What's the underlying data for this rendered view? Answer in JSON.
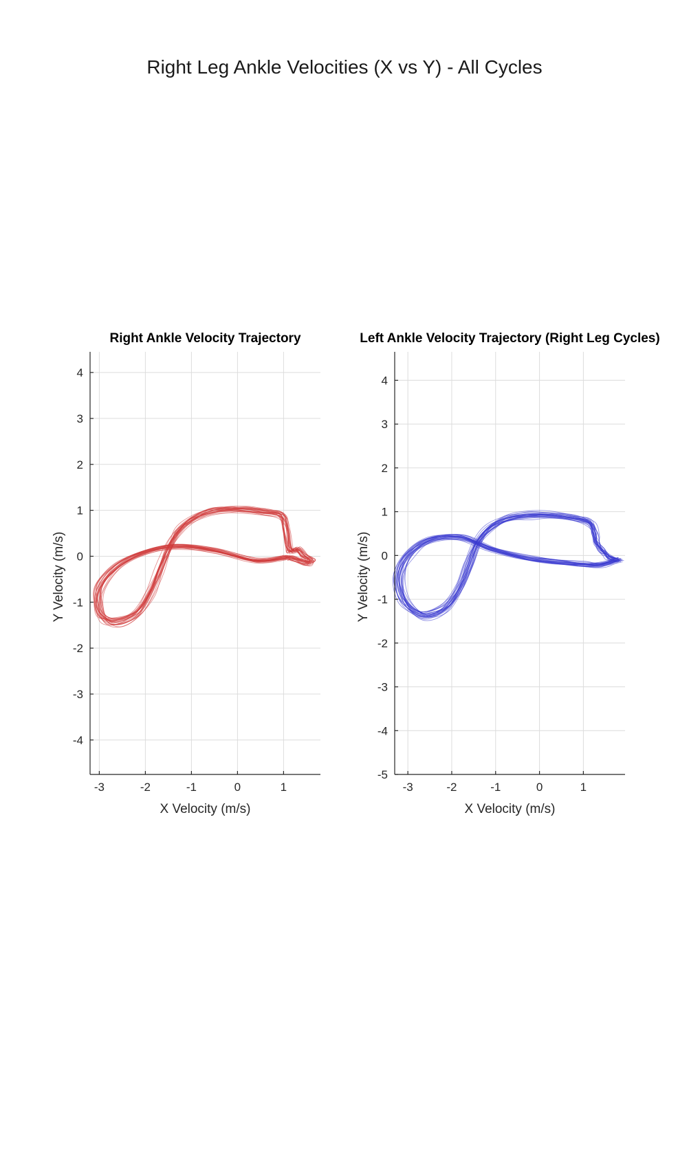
{
  "figure": {
    "suptitle": "Right Leg Ankle Velocities (X vs Y) - All Cycles"
  },
  "chart_data": [
    {
      "type": "line",
      "title": "Right Ankle Velocity Trajectory",
      "xlabel": "X Velocity (m/s)",
      "ylabel": "Y Velocity (m/s)",
      "xlim": [
        -3.2,
        1.8
      ],
      "ylim": [
        -4.75,
        4.45
      ],
      "xticks": [
        -3,
        -2,
        -1,
        0,
        1
      ],
      "yticks": [
        -4,
        -3,
        -2,
        -1,
        0,
        1,
        2,
        3,
        4
      ],
      "grid": true,
      "color": "#d03a3a",
      "cycles": 24,
      "mean_trajectory": {
        "x": [
          1.05,
          0.4,
          -0.5,
          -1.3,
          -2.0,
          -2.6,
          -3.0,
          -3.05,
          -2.9,
          -2.6,
          -2.2,
          -1.9,
          -1.7,
          -1.5,
          -1.3,
          -1.0,
          -0.6,
          -0.2,
          0.2,
          0.6,
          0.95,
          1.05,
          1.1,
          1.15,
          1.3,
          1.45,
          1.6,
          1.5,
          1.2,
          1.05
        ],
        "y": [
          -0.03,
          -0.1,
          0.12,
          0.22,
          0.1,
          -0.2,
          -0.65,
          -1.1,
          -1.4,
          -1.45,
          -1.25,
          -0.8,
          -0.3,
          0.2,
          0.55,
          0.8,
          0.98,
          1.03,
          1.02,
          0.98,
          0.9,
          0.6,
          0.25,
          0.1,
          0.15,
          0.0,
          -0.1,
          -0.15,
          -0.05,
          -0.03
        ]
      }
    },
    {
      "type": "line",
      "title": "Left Ankle Velocity Trajectory (Right Leg Cycles)",
      "xlabel": "X Velocity (m/s)",
      "ylabel": "Y Velocity (m/s)",
      "xlim": [
        -3.3,
        1.95
      ],
      "ylim": [
        -5.0,
        4.65
      ],
      "xticks": [
        -3,
        -2,
        -1,
        0,
        1
      ],
      "yticks": [
        -5,
        -4,
        -3,
        -2,
        -1,
        0,
        1,
        2,
        3,
        4
      ],
      "grid": true,
      "color": "#3a3ad0",
      "cycles": 24,
      "mean_trajectory": {
        "x": [
          1.8,
          1.4,
          1.0,
          0.4,
          -0.3,
          -1.1,
          -1.8,
          -2.5,
          -3.0,
          -3.2,
          -3.1,
          -2.8,
          -2.5,
          -2.1,
          -1.8,
          -1.6,
          -1.4,
          -1.1,
          -0.7,
          -0.2,
          0.3,
          0.8,
          1.15,
          1.25,
          1.3,
          1.4,
          1.5,
          1.6,
          1.8
        ],
        "y": [
          -0.1,
          -0.2,
          -0.2,
          -0.15,
          -0.05,
          0.15,
          0.42,
          0.35,
          0.0,
          -0.5,
          -1.0,
          -1.3,
          -1.35,
          -1.15,
          -0.7,
          -0.2,
          0.3,
          0.65,
          0.85,
          0.92,
          0.92,
          0.85,
          0.75,
          0.5,
          0.3,
          0.15,
          0.05,
          -0.05,
          -0.1
        ]
      }
    }
  ]
}
